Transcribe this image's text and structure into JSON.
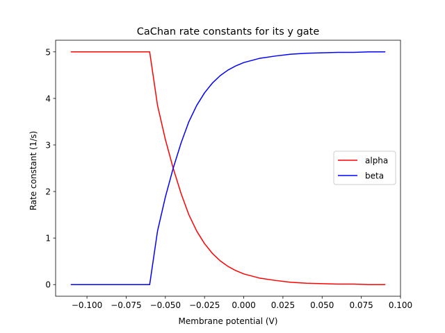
{
  "chart_data": {
    "type": "line",
    "title": "CaChan rate constants for its y gate",
    "xlabel": "Membrane potential (V)",
    "ylabel": "Rate constant (1/s)",
    "xlim": [
      -0.12,
      0.1
    ],
    "ylim": [
      -0.25,
      5.25
    ],
    "xticks": [
      -0.1,
      -0.075,
      -0.05,
      -0.025,
      0.0,
      0.025,
      0.05,
      0.075,
      0.1
    ],
    "xtick_labels": [
      "−0.100",
      "−0.075",
      "−0.050",
      "−0.025",
      "0.000",
      "0.025",
      "0.050",
      "0.075",
      "0.100"
    ],
    "yticks": [
      0,
      1,
      2,
      3,
      4,
      5
    ],
    "ytick_labels": [
      "0",
      "1",
      "2",
      "3",
      "4",
      "5"
    ],
    "grid": false,
    "legend_position": "center-right",
    "x": [
      -0.11,
      -0.1,
      -0.09,
      -0.08,
      -0.07,
      -0.06,
      -0.055,
      -0.05,
      -0.045,
      -0.04,
      -0.035,
      -0.03,
      -0.025,
      -0.02,
      -0.015,
      -0.01,
      -0.005,
      0.0,
      0.01,
      0.02,
      0.03,
      0.04,
      0.05,
      0.06,
      0.07,
      0.08,
      0.09
    ],
    "series": [
      {
        "name": "alpha",
        "color": "#ff0000",
        "values": [
          5.0,
          5.0,
          5.0,
          5.0,
          5.0,
          5.0,
          3.85,
          3.12,
          2.5,
          1.96,
          1.5,
          1.15,
          0.88,
          0.67,
          0.51,
          0.39,
          0.3,
          0.23,
          0.14,
          0.09,
          0.05,
          0.03,
          0.02,
          0.01,
          0.01,
          0.0,
          0.0
        ]
      },
      {
        "name": "beta",
        "color": "#0000ff",
        "values": [
          0.0,
          0.0,
          0.0,
          0.0,
          0.0,
          0.0,
          1.15,
          1.88,
          2.5,
          3.04,
          3.5,
          3.85,
          4.12,
          4.33,
          4.49,
          4.61,
          4.7,
          4.77,
          4.86,
          4.91,
          4.95,
          4.97,
          4.98,
          4.99,
          4.99,
          5.0,
          5.0
        ]
      }
    ]
  }
}
